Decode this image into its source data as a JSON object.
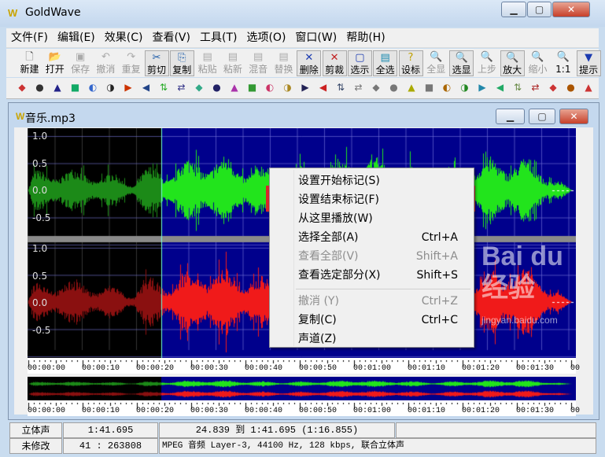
{
  "app": {
    "title": "GoldWave",
    "icon_text": "W"
  },
  "menu": [
    "文件(F)",
    "编辑(E)",
    "效果(C)",
    "查看(V)",
    "工具(T)",
    "选项(O)",
    "窗口(W)",
    "帮助(H)"
  ],
  "toolbar": [
    {
      "label": "新建",
      "icon": "new-file-icon",
      "glyph": "🗋",
      "enabled": true
    },
    {
      "label": "打开",
      "icon": "open-folder-icon",
      "glyph": "📂",
      "enabled": true
    },
    {
      "label": "保存",
      "icon": "save-icon",
      "glyph": "▣",
      "enabled": false
    },
    {
      "label": "撤消",
      "icon": "undo-icon",
      "glyph": "↶",
      "enabled": false
    },
    {
      "label": "重复",
      "icon": "redo-icon",
      "glyph": "↷",
      "enabled": false
    },
    {
      "label": "剪切",
      "icon": "scissors-icon",
      "glyph": "✂",
      "enabled": true
    },
    {
      "label": "复制",
      "icon": "copy-icon",
      "glyph": "⎘",
      "enabled": true
    },
    {
      "label": "粘贴",
      "icon": "paste-icon",
      "glyph": "▤",
      "enabled": false
    },
    {
      "label": "粘新",
      "icon": "paste-new-icon",
      "glyph": "▤",
      "enabled": false
    },
    {
      "label": "混音",
      "icon": "mix-icon",
      "glyph": "▤",
      "enabled": false
    },
    {
      "label": "替换",
      "icon": "replace-icon",
      "glyph": "▤",
      "enabled": false
    },
    {
      "label": "删除",
      "icon": "delete-icon",
      "glyph": "✕",
      "enabled": true
    },
    {
      "label": "剪裁",
      "icon": "trim-icon",
      "glyph": "✕",
      "enabled": true
    },
    {
      "label": "选示",
      "icon": "select-view-icon",
      "glyph": "▢",
      "enabled": true
    },
    {
      "label": "全选",
      "icon": "select-all-icon",
      "glyph": "▤",
      "enabled": true
    },
    {
      "label": "设标",
      "icon": "set-marker-icon",
      "glyph": "?",
      "enabled": true
    },
    {
      "label": "全显",
      "icon": "zoom-all-icon",
      "glyph": "🔍",
      "enabled": false
    },
    {
      "label": "选显",
      "icon": "zoom-selection-icon",
      "glyph": "🔍",
      "enabled": true
    },
    {
      "label": "上步",
      "icon": "zoom-previous-icon",
      "glyph": "🔍",
      "enabled": false
    },
    {
      "label": "放大",
      "icon": "zoom-in-icon",
      "glyph": "🔍",
      "enabled": true
    },
    {
      "label": "缩小",
      "icon": "zoom-out-icon",
      "glyph": "🔍",
      "enabled": false
    },
    {
      "label": "1:1",
      "icon": "zoom-1to1-icon",
      "glyph": "🔍",
      "enabled": true
    },
    {
      "label": "提示",
      "icon": "hint-icon",
      "glyph": "▼",
      "enabled": true
    }
  ],
  "toolbar2": [
    "doppler-icon",
    "channel-swap-icon",
    "fade-icon",
    "expand-icon",
    "echo-icon",
    "fade-in-icon",
    "reverse-icon",
    "filter-icon",
    "pitch-icon",
    "equalizer-icon",
    "stretch-icon",
    "offset-icon",
    "spectrum-icon",
    "matrix-icon",
    "mix-icon",
    "stereo-icon",
    "noise-icon",
    "invert-icon",
    "mechanize-icon",
    "compress-icon",
    "volume-icon",
    "volume-change-icon",
    "volume-shape-icon",
    "match-icon",
    "maximize-icon",
    "auto-gain-icon",
    "normalize-icon",
    "play-rate-icon",
    "resample-icon",
    "transpose-icon",
    "silence-icon",
    "remove-silence-icon",
    "time-icon"
  ],
  "document": {
    "title": "音乐.mp3",
    "icon_text": "W"
  },
  "waveform": {
    "y_labels": [
      "1.0",
      "0.5",
      "0.0",
      "-0.5"
    ],
    "selection_start": "24.839",
    "selection_end": "1:41.695",
    "left_color": "#22e41c",
    "right_color": "#f01a1a",
    "selected_bg": "#00008c",
    "unselected_bg": "#000000"
  },
  "timeline": [
    "00:00:00",
    "00:00:10",
    "00:00:20",
    "00:00:30",
    "00:00:40",
    "00:00:50",
    "00:01:00",
    "00:01:10",
    "00:01:20",
    "00:01:30",
    "00"
  ],
  "context_menu": [
    {
      "label": "设置开始标记(S)",
      "shortcut": "",
      "enabled": true
    },
    {
      "label": "设置结束标记(F)",
      "shortcut": "",
      "enabled": true,
      "highlighted": true
    },
    {
      "label": "从这里播放(W)",
      "shortcut": "",
      "enabled": true
    },
    {
      "label": "选择全部(A)",
      "shortcut": "Ctrl+A",
      "enabled": true
    },
    {
      "label": "查看全部(V)",
      "shortcut": "Shift+A",
      "enabled": false
    },
    {
      "label": "查看选定部分(X)",
      "shortcut": "Shift+S",
      "enabled": true
    },
    {
      "label": "撤消 (Y)",
      "shortcut": "Ctrl+Z",
      "enabled": false
    },
    {
      "label": "复制(C)",
      "shortcut": "Ctrl+C",
      "enabled": true
    },
    {
      "label": "声道(Z)",
      "shortcut": "",
      "enabled": true
    }
  ],
  "status": {
    "channel": "立体声",
    "length": "1:41.695",
    "selection": "24.839 到 1:41.695 (1:16.855)",
    "modified": "未修改",
    "position": "41 : 263808",
    "format": "MPEG 音频 Layer-3, 44100 Hz, 128 kbps, 联合立体声"
  },
  "watermark": {
    "text": "Bai du 经验",
    "url": "jingyan.baidu.com"
  }
}
